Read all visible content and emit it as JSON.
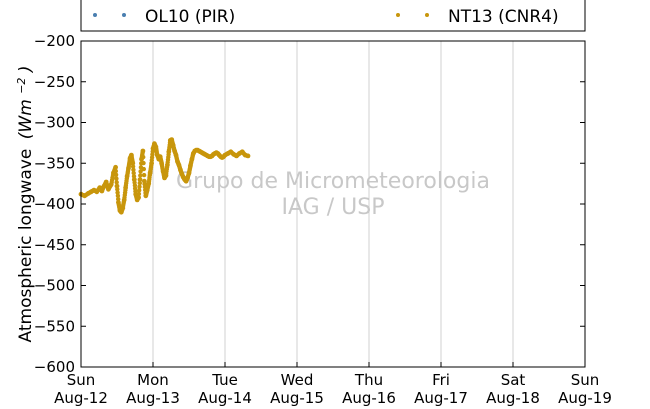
{
  "chart_data": {
    "type": "scatter",
    "ylabel_text": "Atmospheric longwave",
    "ylabel_unit_base": "(Wm",
    "ylabel_unit_exp": "−2",
    "ylabel_unit_close": ")",
    "ylim": [
      -600,
      -200
    ],
    "yticks": [
      -200,
      -250,
      -300,
      -350,
      -400,
      -450,
      -500,
      -550,
      -600
    ],
    "yticklabels": [
      "−200",
      "−250",
      "−300",
      "−350",
      "−400",
      "−450",
      "−500",
      "−550",
      "−600"
    ],
    "xlim_days": [
      0,
      7
    ],
    "xticks": [
      {
        "day": "Sun",
        "date": "Aug-12"
      },
      {
        "day": "Mon",
        "date": "Aug-13"
      },
      {
        "day": "Tue",
        "date": "Aug-14"
      },
      {
        "day": "Wed",
        "date": "Aug-15"
      },
      {
        "day": "Thu",
        "date": "Aug-16"
      },
      {
        "day": "Fri",
        "date": "Aug-17"
      },
      {
        "day": "Sat",
        "date": "Aug-18"
      },
      {
        "day": "Sun",
        "date": "Aug-19"
      }
    ],
    "grid": "vertical",
    "legend_position": "top",
    "series": [
      {
        "name": "OL10 (PIR)",
        "color": "#4a7fb0",
        "x": [],
        "y": []
      },
      {
        "name": "NT13 (CNR4)",
        "color": "#c8960c",
        "x": [
          0.0,
          0.05,
          0.1,
          0.14,
          0.18,
          0.22,
          0.26,
          0.29,
          0.32,
          0.35,
          0.38,
          0.42,
          0.45,
          0.48,
          0.5,
          0.52,
          0.54,
          0.56,
          0.58,
          0.6,
          0.62,
          0.64,
          0.66,
          0.68,
          0.7,
          0.72,
          0.74,
          0.76,
          0.78,
          0.8,
          0.82,
          0.84,
          0.86,
          0.88,
          0.9,
          0.92,
          0.94,
          0.96,
          0.98,
          1.0,
          1.02,
          1.04,
          1.06,
          1.08,
          1.1,
          1.12,
          1.14,
          1.16,
          1.18,
          1.2,
          1.22,
          1.24,
          1.26,
          1.28,
          1.3,
          1.32,
          1.34,
          1.36,
          1.38,
          1.4,
          1.42,
          1.44,
          1.46,
          1.48,
          1.5,
          1.52,
          1.54,
          1.56,
          1.58,
          1.6,
          1.62,
          1.64,
          1.66,
          1.68,
          1.7,
          1.72,
          1.74,
          1.76,
          1.78,
          1.8,
          1.82,
          1.84,
          1.86,
          1.88,
          1.9,
          1.92,
          1.94,
          1.96,
          1.98,
          2.0,
          2.04,
          2.08,
          2.12,
          2.16,
          2.2,
          2.24,
          2.28,
          2.32
        ],
        "y": [
          -388,
          -390,
          -387,
          -385,
          -383,
          -385,
          -380,
          -384,
          -378,
          -373,
          -382,
          -376,
          -362,
          -355,
          -378,
          -398,
          -408,
          -410,
          -405,
          -395,
          -380,
          -366,
          -356,
          -344,
          -340,
          -350,
          -370,
          -388,
          -395,
          -392,
          -370,
          -345,
          -335,
          -372,
          -390,
          -383,
          -375,
          -362,
          -350,
          -332,
          -326,
          -330,
          -340,
          -345,
          -342,
          -350,
          -360,
          -368,
          -365,
          -352,
          -336,
          -322,
          -321,
          -328,
          -335,
          -340,
          -348,
          -352,
          -358,
          -363,
          -367,
          -370,
          -372,
          -368,
          -362,
          -353,
          -345,
          -338,
          -335,
          -334,
          -334,
          -335,
          -336,
          -337,
          -338,
          -339,
          -340,
          -341,
          -342,
          -342,
          -341,
          -339,
          -338,
          -337,
          -338,
          -340,
          -342,
          -343,
          -342,
          -340,
          -338,
          -336,
          -339,
          -341,
          -338,
          -336,
          -340,
          -341
        ]
      }
    ]
  },
  "watermark": {
    "line1": "Grupo de Micrometeorologia",
    "line2": "IAG / USP"
  }
}
